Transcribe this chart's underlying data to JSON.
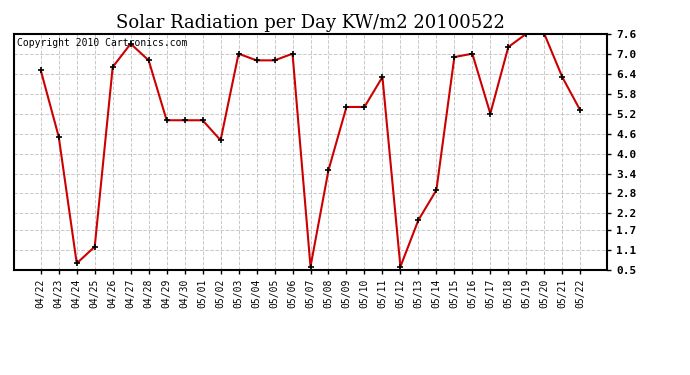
{
  "title": "Solar Radiation per Day KW/m2 20100522",
  "copyright": "Copyright 2010 Cartronics.com",
  "categories": [
    "04/22",
    "04/23",
    "04/24",
    "04/25",
    "04/26",
    "04/27",
    "04/28",
    "04/29",
    "04/30",
    "05/01",
    "05/02",
    "05/03",
    "05/04",
    "05/05",
    "05/06",
    "05/07",
    "05/08",
    "05/09",
    "05/10",
    "05/11",
    "05/12",
    "05/13",
    "05/14",
    "05/15",
    "05/16",
    "05/17",
    "05/18",
    "05/19",
    "05/20",
    "05/21",
    "05/22"
  ],
  "values": [
    6.5,
    4.5,
    0.7,
    1.2,
    6.6,
    7.3,
    6.8,
    5.0,
    5.0,
    5.0,
    4.4,
    7.0,
    6.8,
    6.8,
    7.0,
    0.6,
    3.5,
    5.4,
    5.4,
    6.3,
    0.6,
    2.0,
    2.9,
    6.9,
    7.0,
    5.2,
    7.2,
    7.6,
    7.6,
    6.3,
    5.3
  ],
  "ylim_min": 0.5,
  "ylim_max": 7.6,
  "yticks": [
    0.5,
    1.1,
    1.7,
    2.2,
    2.8,
    3.4,
    4.0,
    4.6,
    5.2,
    5.8,
    6.4,
    7.0,
    7.6
  ],
  "line_color": "#cc0000",
  "marker": "+",
  "marker_color": "#000000",
  "marker_size": 5,
  "line_width": 1.5,
  "bg_color": "#ffffff",
  "grid_color": "#bbbbbb",
  "title_fontsize": 13,
  "tick_fontsize": 7,
  "ytick_fontsize": 8,
  "copyright_fontsize": 7
}
